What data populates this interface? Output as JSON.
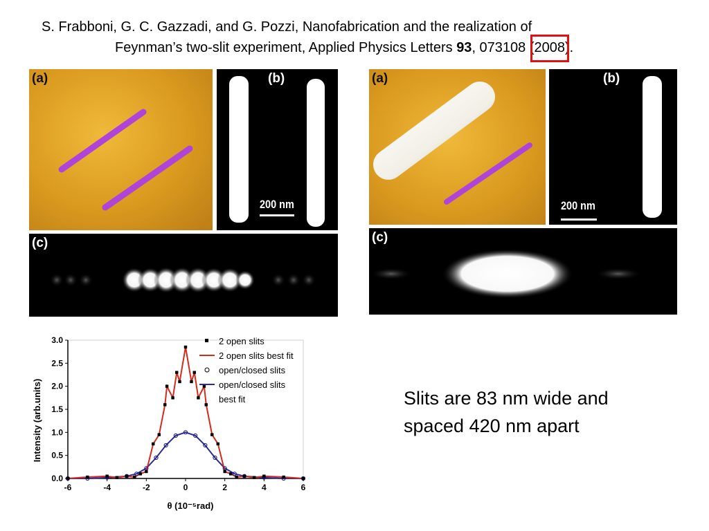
{
  "citation": {
    "line1": "S. Frabboni, G. C. Gazzadi, and G. Pozzi, Nanofabrication and the realization of",
    "line2_prefix": "Feynman’s two-slit experiment, Applied Physics Letters ",
    "volume": "93",
    "mid": ", 073108 (",
    "year": "2008",
    "suffix": ")."
  },
  "left_figure": {
    "label_a": "(a)",
    "label_b": "(b)",
    "label_c": "(c)",
    "scale": "200 nm"
  },
  "right_figure": {
    "label_a": "(a)",
    "label_b": "(b)",
    "label_c": "(c)",
    "scale": "200 nm"
  },
  "caption": {
    "line1": "Slits are 83 nm wide and",
    "line2": "spaced 420 nm apart"
  },
  "chart_data": {
    "type": "scatter",
    "xlabel": "θ (10⁻⁵rad)",
    "ylabel": "Intensity (arb.units)",
    "xlim": [
      -6,
      6
    ],
    "ylim": [
      0,
      3.0
    ],
    "xticks": [
      "-6",
      "-4",
      "-2",
      "0",
      "2",
      "4",
      "6"
    ],
    "yticks": [
      "0.0",
      "0.5",
      "1.0",
      "1.5",
      "2.0",
      "2.5",
      "3.0"
    ],
    "legend": [
      "2 open slits",
      "2 open slits best fit",
      "open/closed slits",
      "open/closed slits",
      "best fit"
    ],
    "legend_position": "top-right",
    "colors": {
      "fit2": "#d42a1a",
      "fit1": "#2a2a9a",
      "data2": "#000000",
      "data1": "#1a1a7a"
    },
    "series": [
      {
        "name": "2 open slits",
        "x": [
          -6.0,
          -5.0,
          -4.0,
          -3.5,
          -3.0,
          -2.6,
          -2.3,
          -2.0,
          -1.65,
          -1.35,
          -1.05,
          -0.95,
          -0.65,
          -0.45,
          -0.3,
          0.0,
          0.3,
          0.45,
          0.65,
          0.95,
          1.05,
          1.35,
          1.65,
          2.0,
          2.3,
          2.6,
          3.0,
          3.5,
          4.0,
          5.0,
          6.0
        ],
        "y": [
          0.0,
          0.03,
          0.05,
          0.02,
          0.05,
          0.03,
          0.1,
          0.15,
          0.75,
          0.95,
          1.6,
          2.0,
          1.75,
          2.3,
          2.1,
          2.85,
          2.1,
          2.3,
          1.75,
          2.0,
          1.6,
          0.95,
          0.75,
          0.15,
          0.1,
          0.03,
          0.05,
          0.02,
          0.05,
          0.03,
          0.0
        ]
      },
      {
        "name": "open/closed slits",
        "x": [
          -6.0,
          -5.0,
          -4.0,
          -3.0,
          -2.5,
          -2.0,
          -1.5,
          -1.0,
          -0.5,
          0.0,
          0.5,
          1.0,
          1.5,
          2.0,
          2.5,
          3.0,
          4.0,
          5.0,
          6.0
        ],
        "y": [
          0.0,
          0.0,
          0.02,
          0.05,
          0.1,
          0.22,
          0.45,
          0.72,
          0.93,
          1.0,
          0.93,
          0.72,
          0.45,
          0.22,
          0.1,
          0.05,
          0.02,
          0.0,
          0.0
        ]
      }
    ]
  }
}
